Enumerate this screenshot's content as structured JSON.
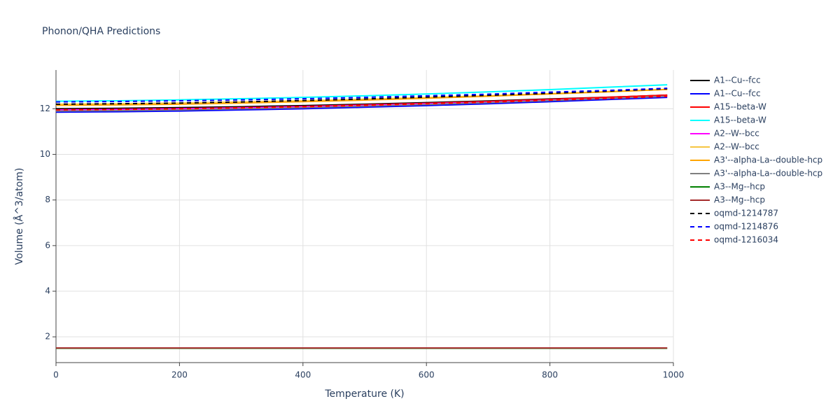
{
  "chart_data": {
    "type": "line",
    "title": "Phonon/QHA Predictions",
    "x_label": "Temperature (K)",
    "y_label": "Volume (Å^3/atom)",
    "x": [
      0,
      100,
      200,
      300,
      400,
      500,
      600,
      700,
      800,
      900,
      990
    ],
    "xlim": [
      0,
      1000
    ],
    "xticks": [
      0,
      200,
      400,
      600,
      800,
      1000
    ],
    "ylim": [
      0.87,
      13.7
    ],
    "yticks": [
      2,
      4,
      6,
      8,
      10,
      12
    ],
    "grid": true,
    "series": [
      {
        "name": "A1--Cu--fcc",
        "color": "#000000",
        "dash": false,
        "values": [
          12.0,
          12.02,
          12.05,
          12.09,
          12.14,
          12.2,
          12.27,
          12.34,
          12.43,
          12.51,
          12.6
        ]
      },
      {
        "name": "A1--Cu--fcc",
        "color": "#0000ff",
        "dash": false,
        "values": [
          11.85,
          11.87,
          11.9,
          11.95,
          12.0,
          12.07,
          12.14,
          12.22,
          12.31,
          12.41,
          12.5
        ]
      },
      {
        "name": "A15--beta-W",
        "color": "#ff0000",
        "dash": false,
        "values": [
          11.95,
          11.97,
          12.0,
          12.05,
          12.1,
          12.17,
          12.24,
          12.32,
          12.41,
          12.51,
          12.6
        ]
      },
      {
        "name": "A15--beta-W",
        "color": "#00ffff",
        "dash": false,
        "values": [
          12.33,
          12.35,
          12.39,
          12.44,
          12.5,
          12.57,
          12.65,
          12.74,
          12.84,
          12.95,
          13.05
        ]
      },
      {
        "name": "A2--W--bcc",
        "color": "#ff00ff",
        "dash": false,
        "values": [
          11.95,
          11.97,
          12.0,
          12.04,
          12.09,
          12.15,
          12.22,
          12.29,
          12.38,
          12.46,
          12.55
        ]
      },
      {
        "name": "A2--W--bcc",
        "color": "#f5c542",
        "dash": false,
        "values": [
          12.2,
          12.22,
          12.25,
          12.3,
          12.35,
          12.42,
          12.49,
          12.57,
          12.66,
          12.76,
          12.85
        ]
      },
      {
        "name": "A3'--alpha-La--double-hcp",
        "color": "#ffa500",
        "dash": false,
        "values": [
          12.15,
          12.17,
          12.2,
          12.25,
          12.31,
          12.38,
          12.46,
          12.55,
          12.65,
          12.75,
          12.85
        ]
      },
      {
        "name": "A3'--alpha-La--double-hcp",
        "color": "#808080",
        "dash": false,
        "values": [
          11.9,
          11.92,
          11.95,
          12.0,
          12.05,
          12.12,
          12.19,
          12.27,
          12.36,
          12.46,
          12.55
        ]
      },
      {
        "name": "A3--Mg--hcp",
        "color": "#008000",
        "dash": false,
        "values": [
          1.5,
          1.5,
          1.5,
          1.5,
          1.5,
          1.5,
          1.5,
          1.5,
          1.5,
          1.5,
          1.5
        ]
      },
      {
        "name": "A3--Mg--hcp",
        "color": "#a52a2a",
        "dash": false,
        "values": [
          1.51,
          1.51,
          1.51,
          1.51,
          1.51,
          1.51,
          1.51,
          1.51,
          1.51,
          1.51,
          1.51
        ]
      },
      {
        "name": "oqmd-1214787",
        "color": "#000000",
        "dash": true,
        "values": [
          12.2,
          12.22,
          12.25,
          12.3,
          12.36,
          12.43,
          12.51,
          12.59,
          12.68,
          12.78,
          12.88
        ]
      },
      {
        "name": "oqmd-1214876",
        "color": "#0000ff",
        "dash": true,
        "values": [
          12.3,
          12.32,
          12.35,
          12.39,
          12.44,
          12.5,
          12.57,
          12.64,
          12.73,
          12.81,
          12.9
        ]
      },
      {
        "name": "oqmd-1216034",
        "color": "#ff0000",
        "dash": true,
        "values": [
          11.95,
          11.97,
          12.0,
          12.04,
          12.09,
          12.15,
          12.22,
          12.29,
          12.38,
          12.46,
          12.55
        ]
      }
    ]
  }
}
